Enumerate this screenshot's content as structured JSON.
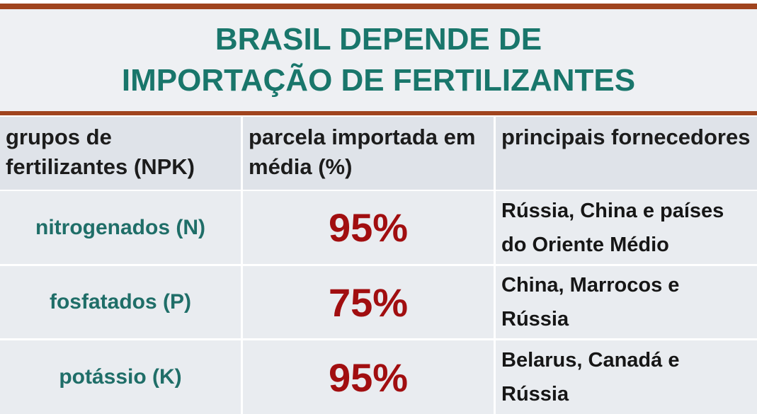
{
  "header": {
    "title_lines": [
      "BRASIL DEPENDE DE",
      "IMPORTAÇÃO DE FERTILIZANTES"
    ]
  },
  "table": {
    "columns": [
      "grupos de fertilizantes (NPK)",
      "parcela importada em média (%)",
      "principais fornecedores"
    ],
    "rows": [
      [
        "nitrogenados (N)",
        "95%",
        "Rússia, China e países do Oriente Médio"
      ],
      [
        "fosfatados (P)",
        "75%",
        "China, Marrocos e Rússia"
      ],
      [
        "potássio (K)",
        "95%",
        "Belarus, Canadá e Rússia"
      ]
    ]
  }
}
